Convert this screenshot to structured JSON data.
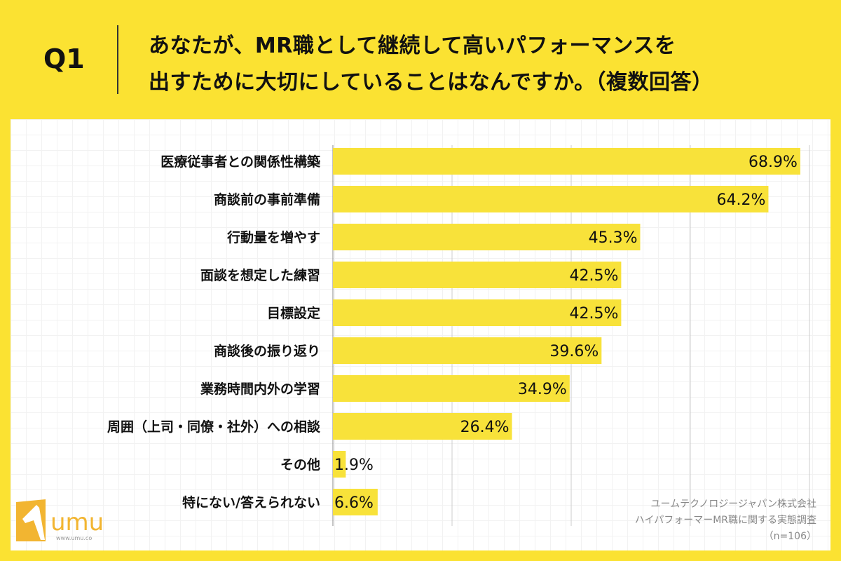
{
  "header": {
    "question_label": "Q1",
    "title_line1": "あなたが、MR職として継続して高いパフォーマンスを",
    "title_line2": "出すために大切にしていることはなんですか。（複数回答）"
  },
  "chart_data": {
    "type": "bar",
    "orientation": "horizontal",
    "categories": [
      "医療従事者との関係性構築",
      "商談前の事前準備",
      "行動量を増やす",
      "面談を想定した練習",
      "目標設定",
      "商談後の振り返り",
      "業務時間内外の学習",
      "周囲（上司・同僚・社外）への相談",
      "その他",
      "特にない/答えられない"
    ],
    "values": [
      68.9,
      64.2,
      45.3,
      42.5,
      42.5,
      39.6,
      34.9,
      26.4,
      1.9,
      6.6
    ],
    "labels": [
      "68.9%",
      "64.2%",
      "45.3%",
      "42.5%",
      "42.5%",
      "39.6%",
      "34.9%",
      "26.4%",
      "1.9%",
      "6.6%"
    ],
    "xlim": [
      0,
      70.25
    ],
    "grid": true,
    "bar_color": "#f8e23a"
  },
  "source": {
    "line1": "ユームテクノロジージャパン株式会社",
    "line2": "ハイパフォーマーMR職に関する実態調査",
    "line3": "（n=106）"
  },
  "logo": {
    "text": "umu",
    "url": "www.umu.co",
    "color": "#f2b531"
  },
  "colors": {
    "background": "#fbe232"
  }
}
